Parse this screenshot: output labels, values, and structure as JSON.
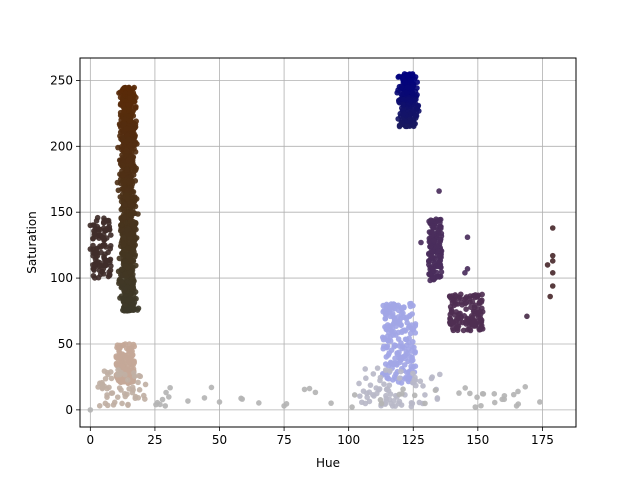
{
  "chart_data": {
    "type": "scatter",
    "title": "",
    "xlabel": "Hue",
    "ylabel": "Saturation",
    "xlim": [
      -4,
      188
    ],
    "ylim": [
      -13,
      267
    ],
    "xticks": [
      0,
      25,
      50,
      75,
      100,
      125,
      150,
      175
    ],
    "yticks": [
      0,
      50,
      100,
      150,
      200,
      250
    ],
    "grid": true,
    "legend": "none",
    "clusters": [
      {
        "x_range": [
          10,
          19
        ],
        "y_range": [
          75,
          245
        ],
        "count": 950,
        "color": "#4a2a10",
        "color_low": "#3d3a2a",
        "color_high": "#5a2a08",
        "tight": true
      },
      {
        "x_range": [
          1,
          8
        ],
        "y_range": [
          100,
          146
        ],
        "count": 110,
        "color": "#402e2a"
      },
      {
        "x_range": [
          10,
          17
        ],
        "y_range": [
          20,
          50
        ],
        "count": 140,
        "color": "#c4a898"
      },
      {
        "x_range": [
          3,
          22
        ],
        "y_range": [
          3,
          32
        ],
        "count": 55,
        "color": "#c0b0a4"
      },
      {
        "x_range": [
          118,
          128
        ],
        "y_range": [
          215,
          255
        ],
        "count": 280,
        "color": "#1a1a7c",
        "color_low": "#1a1a60",
        "color_high": "#000080",
        "tight": true
      },
      {
        "x_range": [
          131,
          136
        ],
        "y_range": [
          98,
          145
        ],
        "count": 150,
        "color": "#4a2e5c"
      },
      {
        "x_range": [
          139,
          152
        ],
        "y_range": [
          60,
          88
        ],
        "count": 130,
        "color": "#4f2f52"
      },
      {
        "x_range": [
          113,
          126
        ],
        "y_range": [
          20,
          81
        ],
        "count": 200,
        "color": "#a2a6e6"
      },
      {
        "x_range": [
          104,
          137
        ],
        "y_range": [
          2,
          32
        ],
        "count": 70,
        "color": "#b8b8c8"
      },
      {
        "x_range": [
          22,
          175
        ],
        "y_range": [
          2,
          18
        ],
        "count": 45,
        "color": "#b4b4b4"
      }
    ],
    "points": [
      {
        "x": 0,
        "y": 0,
        "color": "#b4b4b4"
      },
      {
        "x": 29,
        "y": 3,
        "color": "#b4b4b4"
      },
      {
        "x": 75,
        "y": 3,
        "color": "#b4b4b4"
      },
      {
        "x": 50,
        "y": 6,
        "color": "#b4b4b4"
      },
      {
        "x": 165,
        "y": 3,
        "color": "#b4b4b4"
      },
      {
        "x": 174,
        "y": 6,
        "color": "#b4b4b4"
      },
      {
        "x": 135,
        "y": 166,
        "color": "#4a2e5c"
      },
      {
        "x": 128,
        "y": 127,
        "color": "#4a2e5c"
      },
      {
        "x": 146,
        "y": 131,
        "color": "#4a2e5c"
      },
      {
        "x": 146,
        "y": 107,
        "color": "#4a2e5c"
      },
      {
        "x": 145,
        "y": 104,
        "color": "#4a2e5c"
      },
      {
        "x": 169,
        "y": 71,
        "color": "#4a2e4a"
      },
      {
        "x": 179,
        "y": 138,
        "color": "#4a2a2e"
      },
      {
        "x": 179,
        "y": 117,
        "color": "#4a2a2e"
      },
      {
        "x": 179,
        "y": 113,
        "color": "#4a2a2e"
      },
      {
        "x": 177,
        "y": 110,
        "color": "#4a2a2e"
      },
      {
        "x": 179,
        "y": 104,
        "color": "#4a2a2e"
      },
      {
        "x": 179,
        "y": 94,
        "color": "#4a2a2e"
      },
      {
        "x": 178,
        "y": 86,
        "color": "#4a2a2e"
      },
      {
        "x": 1,
        "y": 110,
        "color": "#402e2a"
      },
      {
        "x": 0,
        "y": 122,
        "color": "#402e2a"
      },
      {
        "x": 0,
        "y": 140,
        "color": "#402e2a"
      }
    ]
  }
}
